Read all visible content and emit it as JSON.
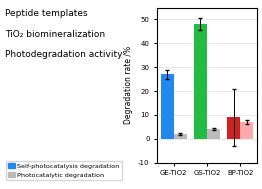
{
  "chart_data": {
    "type": "bar",
    "annotations": [
      "Peptide templates",
      "TiO₂ biomineralization",
      "Photodegradation activity"
    ],
    "categories": [
      "GE-TiO2",
      "GS-TiO2",
      "BP-TiO2"
    ],
    "series": [
      {
        "name": "Self-photocatalysis degradation",
        "values": [
          27,
          48,
          9
        ],
        "colors": [
          "#2288ee",
          "#22bb44",
          "#cc2222"
        ],
        "color": "#2288ee",
        "errors": [
          2.0,
          2.5,
          12.0
        ]
      },
      {
        "name": "Photocatalytic degradation",
        "values": [
          2,
          4,
          7
        ],
        "colors": [
          "#bbbbbb",
          "#bbbbbb",
          "#ffaaaa"
        ],
        "color": "#bbbbbb",
        "errors": [
          0.5,
          0.5,
          1.0
        ]
      }
    ],
    "ylabel": "Degradation rate /%",
    "ylim": [
      -10,
      55
    ],
    "yticks": [
      -10,
      0,
      10,
      20,
      30,
      40,
      50
    ],
    "grid": true,
    "legend": "lower left"
  }
}
